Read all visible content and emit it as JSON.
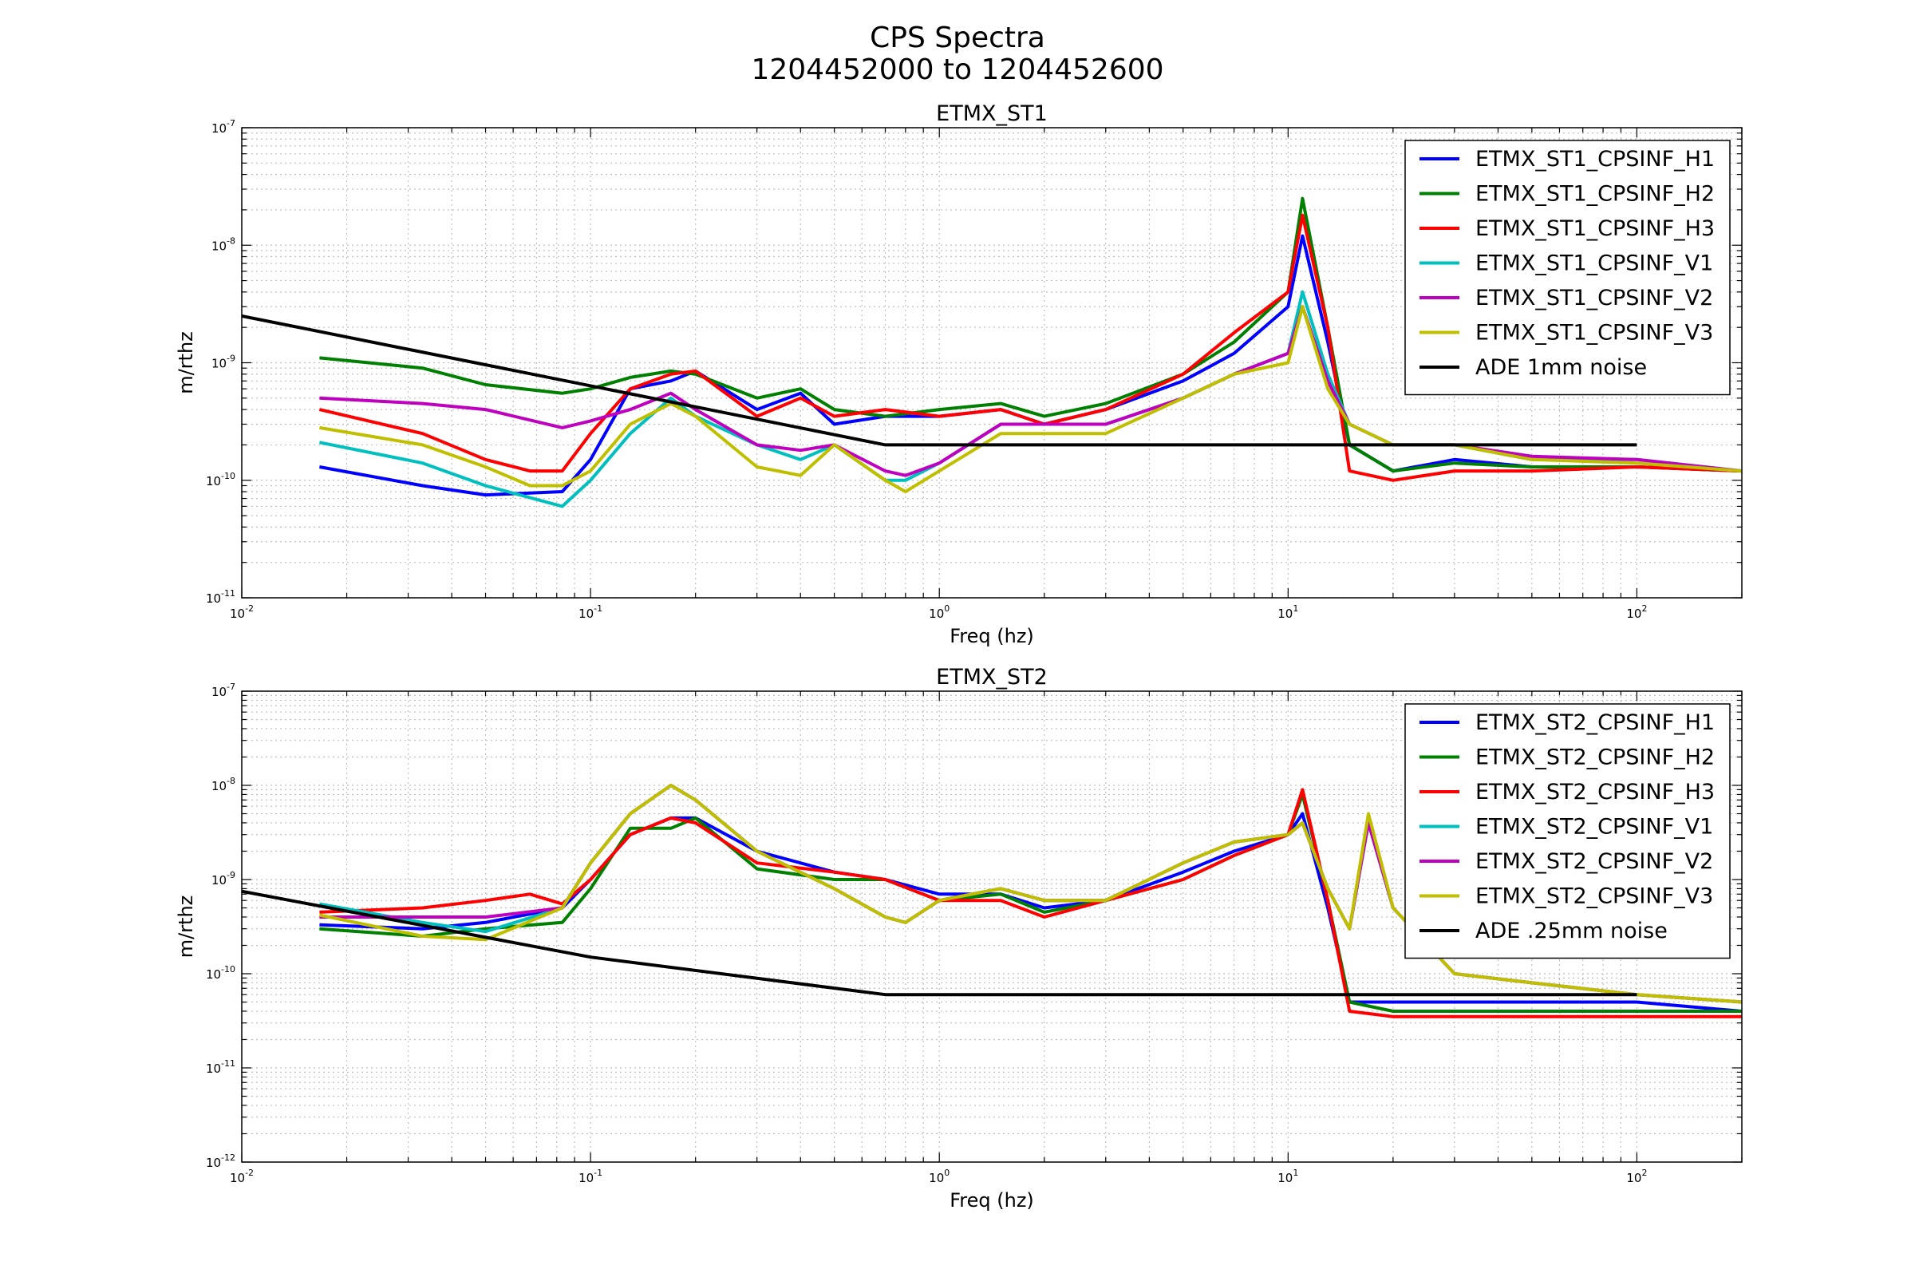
{
  "figure": {
    "title_line1": "CPS Spectra",
    "title_line2": "1204452000 to 1204452600"
  },
  "chart_data": [
    {
      "type": "line",
      "title": "ETMX_ST1",
      "xlabel": "Freq (hz)",
      "ylabel": "m/rthz",
      "xscale": "log",
      "yscale": "log",
      "xlim": [
        0.01,
        200
      ],
      "ylim": [
        1e-11,
        1e-07
      ],
      "grid": true,
      "legend_placement": "top-right",
      "x_tick_labels": [
        {
          "base": "10",
          "exp": "-2"
        },
        {
          "base": "10",
          "exp": "-1"
        },
        {
          "base": "10",
          "exp": "0"
        },
        {
          "base": "10",
          "exp": "1"
        },
        {
          "base": "10",
          "exp": "2"
        }
      ],
      "y_tick_labels": [
        {
          "base": "10",
          "exp": "-11"
        },
        {
          "base": "10",
          "exp": "-10"
        },
        {
          "base": "10",
          "exp": "-9"
        },
        {
          "base": "10",
          "exp": "-8"
        },
        {
          "base": "10",
          "exp": "-7"
        }
      ],
      "series": [
        {
          "name": "ETMX_ST1_CPSINF_H1",
          "color": "#0000ff",
          "x": [
            0.0167,
            0.033,
            0.05,
            0.083,
            0.1,
            0.13,
            0.17,
            0.2,
            0.3,
            0.4,
            0.5,
            0.7,
            1,
            1.5,
            2,
            3,
            5,
            7,
            10,
            11,
            13,
            15,
            20,
            30,
            50,
            100,
            200
          ],
          "y": [
            1.3e-10,
            9e-11,
            7.5e-11,
            8e-11,
            1.5e-10,
            6e-10,
            7e-10,
            8.5e-10,
            4e-10,
            5.5e-10,
            3e-10,
            3.5e-10,
            3.5e-10,
            4e-10,
            3e-10,
            4e-10,
            7e-10,
            1.2e-09,
            3e-09,
            1.2e-08,
            1.5e-09,
            2e-10,
            1.2e-10,
            1.5e-10,
            1.3e-10,
            1.3e-10,
            1.2e-10
          ]
        },
        {
          "name": "ETMX_ST1_CPSINF_H2",
          "color": "#008000",
          "x": [
            0.0167,
            0.033,
            0.05,
            0.083,
            0.1,
            0.13,
            0.17,
            0.2,
            0.3,
            0.4,
            0.5,
            0.7,
            1,
            1.5,
            2,
            3,
            5,
            7,
            10,
            11,
            13,
            15,
            20,
            30,
            50,
            100,
            200
          ],
          "y": [
            1.1e-09,
            9e-10,
            6.5e-10,
            5.5e-10,
            6e-10,
            7.5e-10,
            8.5e-10,
            8e-10,
            5e-10,
            6e-10,
            4e-10,
            3.5e-10,
            4e-10,
            4.5e-10,
            3.5e-10,
            4.5e-10,
            8e-10,
            1.5e-09,
            4e-09,
            2.5e-08,
            2e-09,
            2e-10,
            1.2e-10,
            1.4e-10,
            1.3e-10,
            1.3e-10,
            1.2e-10
          ]
        },
        {
          "name": "ETMX_ST1_CPSINF_H3",
          "color": "#ff0000",
          "x": [
            0.0167,
            0.033,
            0.05,
            0.067,
            0.083,
            0.1,
            0.13,
            0.17,
            0.2,
            0.3,
            0.4,
            0.5,
            0.7,
            1,
            1.5,
            2,
            3,
            5,
            7,
            10,
            11,
            13,
            15,
            20,
            30,
            50,
            100,
            200
          ],
          "y": [
            4e-10,
            2.5e-10,
            1.5e-10,
            1.2e-10,
            1.2e-10,
            2.5e-10,
            6e-10,
            8e-10,
            8.5e-10,
            3.5e-10,
            5e-10,
            3.5e-10,
            4e-10,
            3.5e-10,
            4e-10,
            3e-10,
            4e-10,
            8e-10,
            1.8e-09,
            4e-09,
            1.8e-08,
            2e-09,
            1.2e-10,
            1e-10,
            1.2e-10,
            1.2e-10,
            1.3e-10,
            1.2e-10
          ]
        },
        {
          "name": "ETMX_ST1_CPSINF_V1",
          "color": "#00bfbf",
          "x": [
            0.0167,
            0.033,
            0.05,
            0.083,
            0.1,
            0.13,
            0.17,
            0.2,
            0.3,
            0.4,
            0.5,
            0.7,
            0.8,
            1,
            1.5,
            2,
            3,
            5,
            7,
            10,
            11,
            13,
            15,
            20,
            30,
            50,
            100,
            200
          ],
          "y": [
            2.1e-10,
            1.4e-10,
            9e-11,
            6e-11,
            1e-10,
            2.5e-10,
            5e-10,
            3.5e-10,
            2e-10,
            1.5e-10,
            2e-10,
            1e-10,
            1e-10,
            1.4e-10,
            3e-10,
            3e-10,
            3e-10,
            5e-10,
            8e-10,
            1.2e-09,
            4e-09,
            8e-10,
            3e-10,
            2e-10,
            2e-10,
            1.5e-10,
            1.5e-10,
            1.2e-10
          ]
        },
        {
          "name": "ETMX_ST1_CPSINF_V2",
          "color": "#bf00bf",
          "x": [
            0.0167,
            0.033,
            0.05,
            0.083,
            0.1,
            0.13,
            0.17,
            0.2,
            0.3,
            0.4,
            0.5,
            0.7,
            0.8,
            1,
            1.5,
            2,
            3,
            5,
            7,
            10,
            11,
            13,
            15,
            20,
            30,
            50,
            100,
            200
          ],
          "y": [
            5e-10,
            4.5e-10,
            4e-10,
            2.8e-10,
            3.2e-10,
            4e-10,
            5.5e-10,
            4e-10,
            2e-10,
            1.8e-10,
            2e-10,
            1.2e-10,
            1.1e-10,
            1.4e-10,
            3e-10,
            3e-10,
            3e-10,
            5e-10,
            8e-10,
            1.2e-09,
            3e-09,
            7e-10,
            3e-10,
            2e-10,
            2e-10,
            1.6e-10,
            1.5e-10,
            1.2e-10
          ]
        },
        {
          "name": "ETMX_ST1_CPSINF_V3",
          "color": "#bfbf00",
          "x": [
            0.0167,
            0.033,
            0.05,
            0.067,
            0.083,
            0.1,
            0.13,
            0.17,
            0.2,
            0.3,
            0.4,
            0.5,
            0.7,
            0.8,
            1,
            1.5,
            2,
            3,
            5,
            7,
            10,
            11,
            13,
            15,
            20,
            30,
            50,
            100,
            200
          ],
          "y": [
            2.8e-10,
            2e-10,
            1.3e-10,
            9e-11,
            9e-11,
            1.2e-10,
            3e-10,
            4.5e-10,
            3.5e-10,
            1.3e-10,
            1.1e-10,
            2e-10,
            1e-10,
            8e-11,
            1.2e-10,
            2.5e-10,
            2.5e-10,
            2.5e-10,
            5e-10,
            8e-10,
            1e-09,
            3e-09,
            6e-10,
            3e-10,
            2e-10,
            2e-10,
            1.5e-10,
            1.4e-10,
            1.2e-10
          ]
        },
        {
          "name": "ADE 1mm noise",
          "color": "#000000",
          "x": [
            0.01,
            0.7,
            100
          ],
          "y": [
            2.5e-09,
            2e-10,
            2e-10
          ]
        }
      ]
    },
    {
      "type": "line",
      "title": "ETMX_ST2",
      "xlabel": "Freq (hz)",
      "ylabel": "m/rthz",
      "xscale": "log",
      "yscale": "log",
      "xlim": [
        0.01,
        200
      ],
      "ylim": [
        1e-12,
        1e-07
      ],
      "grid": true,
      "legend_placement": "top-right",
      "x_tick_labels": [
        {
          "base": "10",
          "exp": "-2"
        },
        {
          "base": "10",
          "exp": "-1"
        },
        {
          "base": "10",
          "exp": "0"
        },
        {
          "base": "10",
          "exp": "1"
        },
        {
          "base": "10",
          "exp": "2"
        }
      ],
      "y_tick_labels": [
        {
          "base": "10",
          "exp": "-12"
        },
        {
          "base": "10",
          "exp": "-11"
        },
        {
          "base": "10",
          "exp": "-10"
        },
        {
          "base": "10",
          "exp": "-9"
        },
        {
          "base": "10",
          "exp": "-8"
        },
        {
          "base": "10",
          "exp": "-7"
        }
      ],
      "series": [
        {
          "name": "ETMX_ST2_CPSINF_H1",
          "color": "#0000ff",
          "x": [
            0.0167,
            0.033,
            0.05,
            0.083,
            0.1,
            0.13,
            0.17,
            0.2,
            0.3,
            0.5,
            0.7,
            1,
            1.5,
            2,
            3,
            5,
            7,
            10,
            11,
            13,
            15,
            20,
            30,
            50,
            100,
            200
          ],
          "y": [
            3.3e-10,
            3e-10,
            3.5e-10,
            5e-10,
            1e-09,
            3e-09,
            4.5e-09,
            4.5e-09,
            2e-09,
            1.2e-09,
            1e-09,
            7e-10,
            7e-10,
            5e-10,
            6e-10,
            1.2e-09,
            2e-09,
            3e-09,
            5e-09,
            5e-10,
            5e-11,
            5e-11,
            5e-11,
            5e-11,
            5e-11,
            4e-11
          ]
        },
        {
          "name": "ETMX_ST2_CPSINF_H2",
          "color": "#008000",
          "x": [
            0.0167,
            0.033,
            0.05,
            0.083,
            0.1,
            0.13,
            0.17,
            0.2,
            0.3,
            0.5,
            0.7,
            1,
            1.5,
            2,
            3,
            5,
            7,
            10,
            11,
            13,
            15,
            20,
            30,
            50,
            100,
            200
          ],
          "y": [
            3e-10,
            2.5e-10,
            3e-10,
            3.5e-10,
            8e-10,
            3.5e-09,
            3.5e-09,
            4.5e-09,
            1.3e-09,
            1e-09,
            1e-09,
            6e-10,
            7e-10,
            4.5e-10,
            6e-10,
            1e-09,
            1.8e-09,
            3e-09,
            8e-09,
            6e-10,
            5e-11,
            4e-11,
            4e-11,
            4e-11,
            4e-11,
            4e-11
          ]
        },
        {
          "name": "ETMX_ST2_CPSINF_H3",
          "color": "#ff0000",
          "x": [
            0.0167,
            0.033,
            0.05,
            0.067,
            0.083,
            0.1,
            0.13,
            0.17,
            0.2,
            0.3,
            0.5,
            0.7,
            1,
            1.5,
            2,
            3,
            5,
            7,
            10,
            11,
            13,
            15,
            20,
            30,
            50,
            100,
            200
          ],
          "y": [
            4.5e-10,
            5e-10,
            6e-10,
            7e-10,
            5.5e-10,
            1e-09,
            3e-09,
            4.5e-09,
            4e-09,
            1.5e-09,
            1.2e-09,
            1e-09,
            6e-10,
            6e-10,
            4e-10,
            6e-10,
            1e-09,
            1.8e-09,
            3e-09,
            9e-09,
            6e-10,
            4e-11,
            3.5e-11,
            3.5e-11,
            3.5e-11,
            3.5e-11,
            3.5e-11
          ]
        },
        {
          "name": "ETMX_ST2_CPSINF_V1",
          "color": "#00bfbf",
          "x": [
            0.0167,
            0.033,
            0.05,
            0.083,
            0.1,
            0.13,
            0.17,
            0.2,
            0.3,
            0.5,
            0.7,
            0.8,
            1,
            1.5,
            2,
            3,
            5,
            7,
            10,
            11,
            13,
            15,
            17,
            20,
            30,
            50,
            100,
            200
          ],
          "y": [
            5.5e-10,
            3.5e-10,
            2.8e-10,
            5e-10,
            1.5e-09,
            5e-09,
            1e-08,
            7e-09,
            2e-09,
            8e-10,
            4e-10,
            3.5e-10,
            6e-10,
            8e-10,
            6e-10,
            6e-10,
            1.5e-09,
            2.5e-09,
            3e-09,
            4e-09,
            8e-10,
            3e-10,
            4e-09,
            5e-10,
            1e-10,
            8e-11,
            6e-11,
            5e-11
          ]
        },
        {
          "name": "ETMX_ST2_CPSINF_V2",
          "color": "#bf00bf",
          "x": [
            0.0167,
            0.033,
            0.05,
            0.083,
            0.1,
            0.13,
            0.17,
            0.2,
            0.3,
            0.5,
            0.7,
            0.8,
            1,
            1.5,
            2,
            3,
            5,
            7,
            10,
            11,
            13,
            15,
            17,
            20,
            30,
            50,
            100,
            200
          ],
          "y": [
            4e-10,
            4e-10,
            4e-10,
            5e-10,
            1.5e-09,
            5e-09,
            1e-08,
            7e-09,
            2e-09,
            8e-10,
            4e-10,
            3.5e-10,
            6e-10,
            8e-10,
            6e-10,
            6e-10,
            1.5e-09,
            2.5e-09,
            3e-09,
            4e-09,
            8e-10,
            3e-10,
            4e-09,
            5e-10,
            1e-10,
            8e-11,
            6e-11,
            5e-11
          ]
        },
        {
          "name": "ETMX_ST2_CPSINF_V3",
          "color": "#bfbf00",
          "x": [
            0.0167,
            0.033,
            0.05,
            0.083,
            0.1,
            0.13,
            0.17,
            0.2,
            0.3,
            0.5,
            0.7,
            0.8,
            1,
            1.5,
            2,
            3,
            5,
            7,
            10,
            11,
            13,
            15,
            17,
            20,
            30,
            50,
            100,
            200
          ],
          "y": [
            4.2e-10,
            2.5e-10,
            2.3e-10,
            5e-10,
            1.5e-09,
            5e-09,
            1e-08,
            7e-09,
            2e-09,
            8e-10,
            4e-10,
            3.5e-10,
            6e-10,
            8e-10,
            6e-10,
            6e-10,
            1.5e-09,
            2.5e-09,
            3e-09,
            4e-09,
            8e-10,
            3e-10,
            5e-09,
            5e-10,
            1e-10,
            8e-11,
            6e-11,
            5e-11
          ]
        },
        {
          "name": "ADE .25mm noise",
          "color": "#000000",
          "x": [
            0.01,
            0.1,
            0.7,
            100
          ],
          "y": [
            7.5e-10,
            1.5e-10,
            6e-11,
            6e-11
          ]
        }
      ]
    }
  ]
}
